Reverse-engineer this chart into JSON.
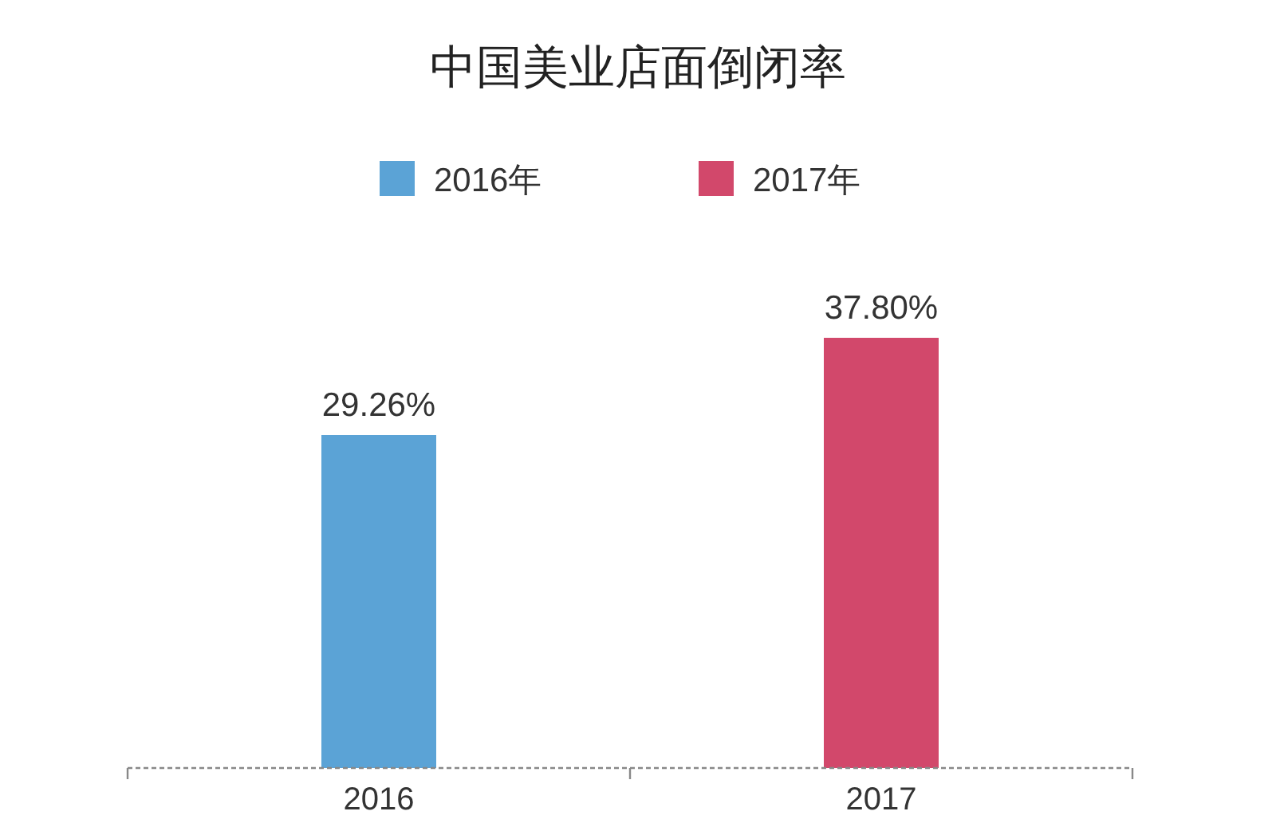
{
  "chart_data": {
    "type": "bar",
    "title": "中国美业店面倒闭率",
    "categories": [
      "2016",
      "2017"
    ],
    "series": [
      {
        "name": "2016年",
        "color": "#5ba3d6",
        "values": [
          29.26,
          null
        ],
        "value_labels": [
          "29.26%",
          null
        ]
      },
      {
        "name": "2017年",
        "color": "#d2486b",
        "values": [
          null,
          37.8
        ],
        "value_labels": [
          null,
          "37.80%"
        ]
      }
    ],
    "legend": "top"
  }
}
